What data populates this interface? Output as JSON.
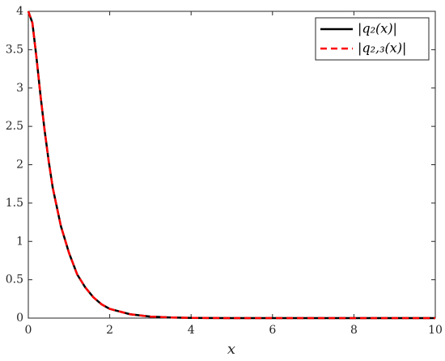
{
  "chart_data": {
    "type": "line",
    "xlabel": "x",
    "x": [
      0,
      0.1,
      0.2,
      0.3,
      0.4,
      0.5,
      0.6,
      0.8,
      1,
      1.2,
      1.4,
      1.6,
      1.8,
      2,
      2.5,
      3,
      3.5,
      4,
      5,
      6,
      7,
      8,
      9,
      10
    ],
    "series": [
      {
        "name": "|q₂(x)|",
        "color": "#000000",
        "dash": false,
        "values": [
          4,
          3.85,
          3.4,
          2.9,
          2.45,
          2.05,
          1.7,
          1.2,
          0.85,
          0.57,
          0.4,
          0.27,
          0.18,
          0.12,
          0.05,
          0.02,
          0.008,
          0.003,
          0,
          0,
          0,
          0,
          0,
          0
        ]
      },
      {
        "name": "|q₂,₃(x)|",
        "color": "#ff0000",
        "dash": true,
        "values": [
          4,
          3.85,
          3.4,
          2.9,
          2.45,
          2.05,
          1.7,
          1.2,
          0.85,
          0.57,
          0.4,
          0.27,
          0.18,
          0.12,
          0.05,
          0.02,
          0.008,
          0.003,
          0,
          0,
          0,
          0,
          0,
          0
        ]
      }
    ],
    "xlim": [
      0,
      10
    ],
    "xticks": [
      0,
      2,
      4,
      6,
      8,
      10
    ],
    "ylim": [
      0,
      4
    ],
    "yticks": [
      0,
      0.5,
      1,
      1.5,
      2,
      2.5,
      3,
      3.5,
      4
    ],
    "legend": "northeast"
  }
}
